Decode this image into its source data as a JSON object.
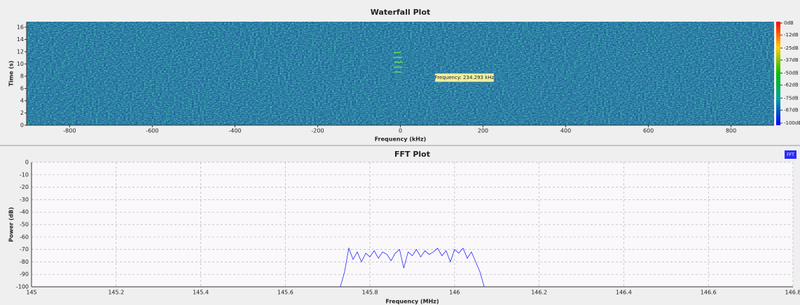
{
  "chart_data": [
    {
      "type": "heatmap",
      "title": "Waterfall Plot",
      "x_label": "Frequency (kHz)",
      "y_label": "Time (s)",
      "xlim": [
        -904,
        904
      ],
      "xticks": [
        -800,
        -600,
        -400,
        -200,
        0,
        200,
        400,
        600,
        800
      ],
      "ylim": [
        0,
        16.9
      ],
      "yticks": [
        0,
        2,
        4,
        6,
        8,
        10,
        12,
        14,
        16
      ],
      "clim": [
        -100,
        0
      ],
      "colorbar_ticks": [
        {
          "value": 0,
          "label": "0dB"
        },
        {
          "value": -12,
          "label": "-12dB"
        },
        {
          "value": -25,
          "label": "-25dB"
        },
        {
          "value": -37,
          "label": "-37dB"
        },
        {
          "value": -50,
          "label": "-50dB"
        },
        {
          "value": -62,
          "label": "-62dB"
        },
        {
          "value": -75,
          "label": "-75dB"
        },
        {
          "value": -87,
          "label": "-87dB"
        },
        {
          "value": -100,
          "label": "-100dB"
        }
      ],
      "annotation": "Frequency: 234.293 kHz"
    },
    {
      "type": "line",
      "title": "FFT Plot",
      "x_label": "Frequency (MHz)",
      "y_label": "Power (dB)",
      "grid": true,
      "xlim": [
        145,
        146.8
      ],
      "xticks": [
        145,
        145.2,
        145.4,
        145.6,
        145.8,
        146,
        146.2,
        146.4,
        146.6,
        146.8
      ],
      "ylim": [
        -100,
        0
      ],
      "yticks": [
        0,
        -10,
        -20,
        -30,
        -40,
        -50,
        -60,
        -70,
        -80,
        -90,
        -100
      ],
      "legend": "top-right",
      "x": [
        145.73,
        145.74,
        145.75,
        145.76,
        145.77,
        145.78,
        145.79,
        145.8,
        145.81,
        145.82,
        145.83,
        145.84,
        145.85,
        145.86,
        145.87,
        145.88,
        145.89,
        145.9,
        145.91,
        145.92,
        145.93,
        145.94,
        145.95,
        145.96,
        145.97,
        145.98,
        145.99,
        146.0,
        146.01,
        146.02,
        146.03,
        146.04,
        146.05,
        146.06,
        146.07
      ],
      "series": [
        {
          "name": "FFT",
          "color": "#2a2aff",
          "values": [
            -100,
            -88,
            -69,
            -78,
            -72,
            -80,
            -73,
            -76,
            -71,
            -77,
            -72,
            -74,
            -79,
            -73,
            -70,
            -85,
            -72,
            -75,
            -70,
            -76,
            -71,
            -74,
            -72,
            -69,
            -75,
            -71,
            -80,
            -70,
            -73,
            -69,
            -77,
            -72,
            -80,
            -88,
            -100
          ]
        }
      ]
    }
  ]
}
